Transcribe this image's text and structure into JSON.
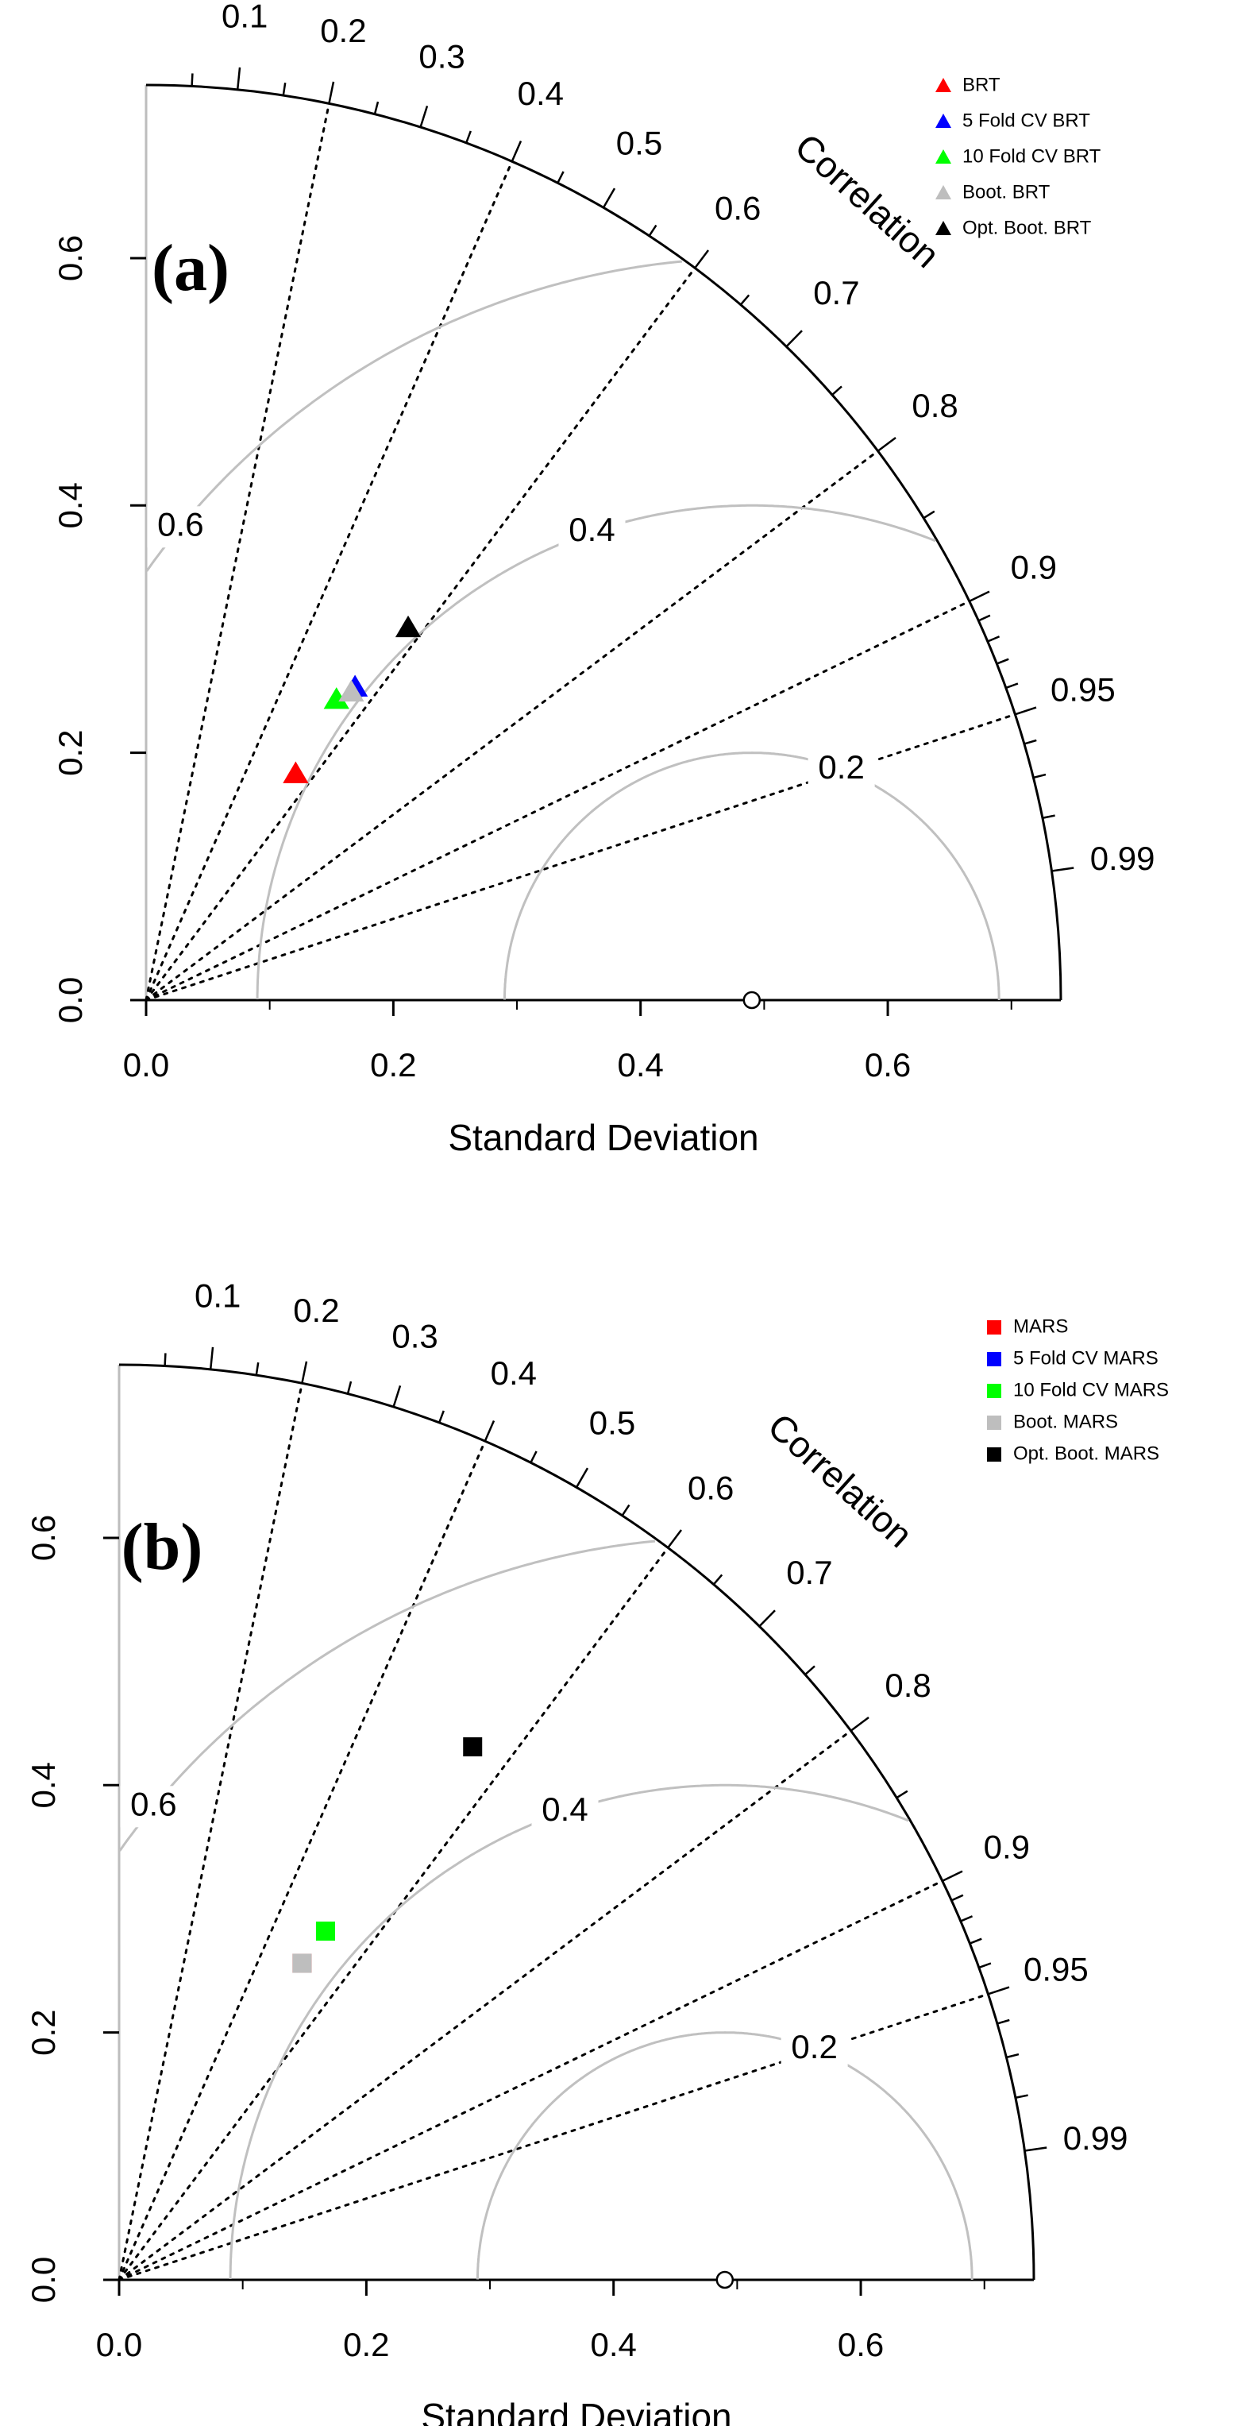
{
  "chart_data": [
    {
      "type": "taylor",
      "panel_label": "(a)",
      "xlabel": "Standard Deviation",
      "ylabel": "",
      "correlation_label": "Correlation",
      "sd_max": 0.74,
      "xlim": [
        0,
        0.74
      ],
      "ylim": [
        0,
        0.74
      ],
      "x_ticks": [
        "0.0",
        "0.2",
        "0.4",
        "0.6"
      ],
      "y_ticks": [
        "0.0",
        "0.2",
        "0.4",
        "0.6"
      ],
      "correlation_labels": [
        "0.1",
        "0.2",
        "0.3",
        "0.4",
        "0.5",
        "0.6",
        "0.7",
        "0.8",
        "0.9",
        "0.95",
        "0.99"
      ],
      "reference_sd": 0.49,
      "rms_contours": [
        "0.2",
        "0.4",
        "0.6"
      ],
      "marker": "triangle",
      "colors": {
        "axis": "#000000",
        "contour": "#c0c0c0",
        "ray": "#000000"
      },
      "series": [
        {
          "name": "BRT",
          "color": "#ff0000",
          "x": 0.121,
          "y": 0.183
        },
        {
          "name": "5 Fold CV BRT",
          "color": "#0000ff",
          "x": 0.169,
          "y": 0.253
        },
        {
          "name": "10 Fold CV BRT",
          "color": "#00ff00",
          "x": 0.154,
          "y": 0.243
        },
        {
          "name": "Boot. BRT",
          "color": "#bebebe",
          "x": 0.166,
          "y": 0.249
        },
        {
          "name": "Opt. Boot. BRT",
          "color": "#000000",
          "x": 0.212,
          "y": 0.301
        }
      ]
    },
    {
      "type": "taylor",
      "panel_label": "(b)",
      "xlabel": "Standard Deviation",
      "ylabel": "",
      "correlation_label": "Correlation",
      "sd_max": 0.74,
      "xlim": [
        0,
        0.74
      ],
      "ylim": [
        0,
        0.74
      ],
      "x_ticks": [
        "0.0",
        "0.2",
        "0.4",
        "0.6"
      ],
      "y_ticks": [
        "0.0",
        "0.2",
        "0.4",
        "0.6"
      ],
      "correlation_labels": [
        "0.1",
        "0.2",
        "0.3",
        "0.4",
        "0.5",
        "0.6",
        "0.7",
        "0.8",
        "0.9",
        "0.95",
        "0.99"
      ],
      "reference_sd": 0.49,
      "rms_contours": [
        "0.2",
        "0.4",
        "0.6"
      ],
      "marker": "square",
      "colors": {
        "axis": "#000000",
        "contour": "#c0c0c0",
        "ray": "#000000"
      },
      "series": [
        {
          "name": "MARS",
          "color": "#ff0000",
          "x": 0.148,
          "y": 0.256
        },
        {
          "name": "5 Fold CV MARS",
          "color": "#0000ff",
          "x": 0.167,
          "y": 0.282
        },
        {
          "name": "10 Fold CV MARS",
          "color": "#00ff00",
          "x": 0.167,
          "y": 0.282
        },
        {
          "name": "Boot. MARS",
          "color": "#bebebe",
          "x": 0.148,
          "y": 0.256
        },
        {
          "name": "Opt. Boot. MARS",
          "color": "#000000",
          "x": 0.286,
          "y": 0.431
        }
      ]
    }
  ]
}
